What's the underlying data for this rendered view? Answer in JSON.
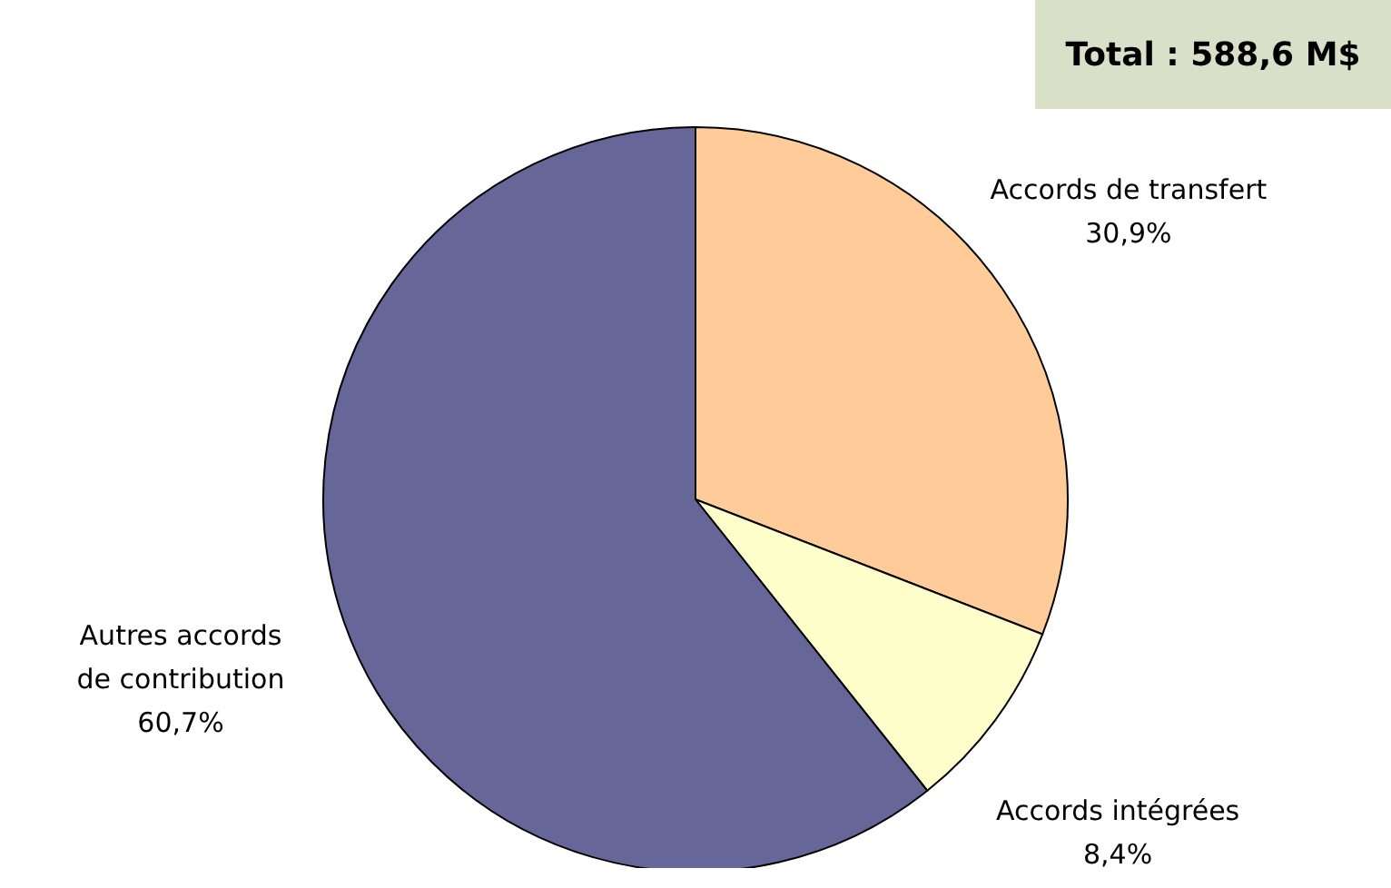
{
  "chart_data": {
    "type": "pie",
    "title": "Total : 588,6 M$",
    "categories": [
      "Accords de transfert",
      "Accords intégrées",
      "Autres accords de contribution"
    ],
    "values": [
      30.9,
      8.4,
      60.7
    ],
    "colors": [
      "#ffcc99",
      "#ffffcc",
      "#666699"
    ],
    "value_labels": [
      "30,9%",
      "8,4%",
      "60,7%"
    ]
  }
}
